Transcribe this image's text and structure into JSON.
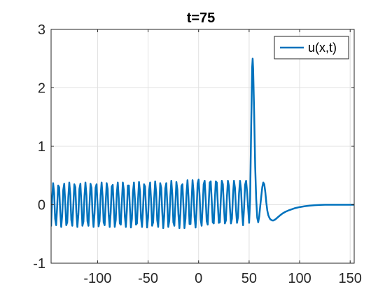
{
  "chart_data": {
    "type": "line",
    "title": "t=75",
    "xlabel": "",
    "ylabel": "",
    "xlim": [
      -146,
      154
    ],
    "ylim": [
      -1,
      3
    ],
    "xticks": [
      -100,
      -50,
      0,
      50,
      100,
      150
    ],
    "xtick_labels": [
      "-100",
      "-50",
      "0",
      "50",
      "100",
      "150"
    ],
    "yticks": [
      -1,
      0,
      1,
      2,
      3
    ],
    "ytick_labels": [
      "-1",
      "0",
      "1",
      "2",
      "3"
    ],
    "grid": true,
    "legend_position": "top-right",
    "series": [
      {
        "name": "u(x,t)",
        "color": "#0072bd",
        "points": [
          [
            -146,
            -0.36
          ],
          [
            -145,
            0.09
          ],
          [
            -144,
            0.37
          ],
          [
            -143,
            0.2
          ],
          [
            -142,
            -0.24
          ],
          [
            -141,
            -0.35
          ],
          [
            -140,
            -0.04
          ],
          [
            -139,
            0.33
          ],
          [
            -138,
            0.3
          ],
          [
            -137,
            -0.11
          ],
          [
            -136,
            -0.38
          ],
          [
            -135,
            -0.18
          ],
          [
            -134,
            0.25
          ],
          [
            -133,
            0.36
          ],
          [
            -132,
            0.03
          ],
          [
            -131,
            -0.35
          ],
          [
            -130,
            -0.3
          ],
          [
            -129,
            0.12
          ],
          [
            -128,
            0.38
          ],
          [
            -127,
            0.18
          ],
          [
            -126,
            -0.26
          ],
          [
            -125,
            -0.36
          ],
          [
            -124,
            -0.02
          ],
          [
            -123,
            0.35
          ],
          [
            -122,
            0.3
          ],
          [
            -121,
            -0.13
          ],
          [
            -120,
            -0.38
          ],
          [
            -119,
            -0.17
          ],
          [
            -118,
            0.27
          ],
          [
            -117,
            0.36
          ],
          [
            -116,
            0.02
          ],
          [
            -115,
            -0.36
          ],
          [
            -114,
            -0.29
          ],
          [
            -113,
            0.14
          ],
          [
            -112,
            0.38
          ],
          [
            -111,
            0.16
          ],
          [
            -110,
            -0.28
          ],
          [
            -109,
            -0.36
          ],
          [
            -108,
            -0.01
          ],
          [
            -107,
            0.36
          ],
          [
            -106,
            0.29
          ],
          [
            -105,
            -0.15
          ],
          [
            -104,
            -0.38
          ],
          [
            -103,
            -0.15
          ],
          [
            -102,
            0.29
          ],
          [
            -101,
            0.35
          ],
          [
            -100,
            0.0
          ],
          [
            -99,
            -0.37
          ],
          [
            -98,
            -0.28
          ],
          [
            -97,
            0.16
          ],
          [
            -96,
            0.38
          ],
          [
            -95,
            0.14
          ],
          [
            -94,
            -0.3
          ],
          [
            -93,
            -0.35
          ],
          [
            -92,
            0.01
          ],
          [
            -91,
            0.37
          ],
          [
            -90,
            0.27
          ],
          [
            -89,
            -0.17
          ],
          [
            -88,
            -0.38
          ],
          [
            -87,
            -0.13
          ],
          [
            -86,
            0.31
          ],
          [
            -85,
            0.34
          ],
          [
            -84,
            -0.03
          ],
          [
            -83,
            -0.38
          ],
          [
            -82,
            -0.26
          ],
          [
            -81,
            0.19
          ],
          [
            -80,
            0.38
          ],
          [
            -79,
            0.11
          ],
          [
            -78,
            -0.32
          ],
          [
            -77,
            -0.34
          ],
          [
            -76,
            0.04
          ],
          [
            -75,
            0.38
          ],
          [
            -74,
            0.25
          ],
          [
            -73,
            -0.2
          ],
          [
            -72,
            -0.38
          ],
          [
            -71,
            -0.1
          ],
          [
            -70,
            0.33
          ],
          [
            -69,
            0.33
          ],
          [
            -68,
            -0.05
          ],
          [
            -67,
            -0.39
          ],
          [
            -66,
            -0.24
          ],
          [
            -65,
            0.21
          ],
          [
            -64,
            0.38
          ],
          [
            -63,
            0.09
          ],
          [
            -62,
            -0.34
          ],
          [
            -61,
            -0.32
          ],
          [
            -60,
            0.07
          ],
          [
            -59,
            0.39
          ],
          [
            -58,
            0.23
          ],
          [
            -57,
            -0.23
          ],
          [
            -56,
            -0.38
          ],
          [
            -55,
            -0.07
          ],
          [
            -54,
            0.35
          ],
          [
            -53,
            0.31
          ],
          [
            -52,
            -0.08
          ],
          [
            -51,
            -0.39
          ],
          [
            -50,
            -0.22
          ],
          [
            -49,
            0.24
          ],
          [
            -48,
            0.38
          ],
          [
            -47,
            0.06
          ],
          [
            -46,
            -0.36
          ],
          [
            -45,
            -0.3
          ],
          [
            -44,
            0.1
          ],
          [
            -43,
            0.4
          ],
          [
            -42,
            0.21
          ],
          [
            -41,
            -0.26
          ],
          [
            -40,
            -0.38
          ],
          [
            -39,
            -0.04
          ],
          [
            -38,
            0.37
          ],
          [
            -37,
            0.29
          ],
          [
            -36,
            -0.12
          ],
          [
            -35,
            -0.4
          ],
          [
            -34,
            -0.19
          ],
          [
            -33,
            0.28
          ],
          [
            -32,
            0.37
          ],
          [
            -31,
            0.02
          ],
          [
            -30,
            -0.38
          ],
          [
            -29,
            -0.27
          ],
          [
            -28,
            0.14
          ],
          [
            -27,
            0.41
          ],
          [
            -26,
            0.17
          ],
          [
            -25,
            -0.3
          ],
          [
            -24,
            -0.36
          ],
          [
            -23,
            0.0
          ],
          [
            -22,
            0.39
          ],
          [
            -21,
            0.26
          ],
          [
            -20,
            -0.16
          ],
          [
            -19,
            -0.4
          ],
          [
            -18,
            -0.15
          ],
          [
            -17,
            0.32
          ],
          [
            -16,
            0.35
          ],
          [
            -15,
            -0.02
          ],
          [
            -14,
            -0.4
          ],
          [
            -13,
            -0.24
          ],
          [
            -12,
            0.19
          ],
          [
            -11,
            0.42
          ],
          [
            -10,
            0.13
          ],
          [
            -9,
            -0.33
          ],
          [
            -8,
            -0.33
          ],
          [
            -7,
            0.05
          ],
          [
            -6,
            0.42
          ],
          [
            -5,
            0.22
          ],
          [
            -4,
            -0.21
          ],
          [
            -3,
            -0.39
          ],
          [
            -2,
            -0.1
          ],
          [
            -1,
            0.36
          ],
          [
            0,
            0.43
          ],
          [
            1,
            0.15
          ],
          [
            2,
            -0.25
          ],
          [
            3,
            -0.36
          ],
          [
            4,
            -0.03
          ],
          [
            5,
            0.35
          ],
          [
            6,
            0.41
          ],
          [
            7,
            0.1
          ],
          [
            8,
            -0.28
          ],
          [
            9,
            -0.34
          ],
          [
            10,
            0.02
          ],
          [
            11,
            0.38
          ],
          [
            12,
            0.4
          ],
          [
            13,
            0.06
          ],
          [
            14,
            -0.3
          ],
          [
            15,
            -0.32
          ],
          [
            16,
            0.06
          ],
          [
            17,
            0.4
          ],
          [
            18,
            0.38
          ],
          [
            19,
            0.02
          ],
          [
            20,
            -0.31
          ],
          [
            21,
            -0.3
          ],
          [
            22,
            0.1
          ],
          [
            23,
            0.41
          ],
          [
            24,
            0.35
          ],
          [
            25,
            -0.02
          ],
          [
            26,
            -0.32
          ],
          [
            27,
            -0.27
          ],
          [
            28,
            0.13
          ],
          [
            29,
            0.41
          ],
          [
            30,
            0.32
          ],
          [
            31,
            -0.05
          ],
          [
            32,
            -0.32
          ],
          [
            33,
            -0.24
          ],
          [
            34,
            0.16
          ],
          [
            35,
            0.41
          ],
          [
            36,
            0.29
          ],
          [
            37,
            -0.08
          ],
          [
            38,
            -0.31
          ],
          [
            39,
            -0.21
          ],
          [
            40,
            0.19
          ],
          [
            41,
            0.41
          ],
          [
            42,
            0.26
          ],
          [
            43,
            -0.12
          ],
          [
            44,
            -0.35
          ],
          [
            45,
            -0.05
          ],
          [
            46,
            0.34
          ],
          [
            47,
            0.41
          ],
          [
            48,
            0.22
          ],
          [
            49,
            -0.05
          ],
          [
            50,
            -0.31
          ],
          [
            51,
            0.1
          ],
          [
            52,
            1.3
          ],
          [
            53,
            2.35
          ],
          [
            53.5,
            2.5
          ],
          [
            54,
            2.32
          ],
          [
            55,
            1.55
          ],
          [
            56,
            0.65
          ],
          [
            57,
            0.1
          ],
          [
            58,
            -0.22
          ],
          [
            59,
            -0.3
          ],
          [
            60,
            -0.2
          ],
          [
            61,
            -0.02
          ],
          [
            62,
            0.14
          ],
          [
            63,
            0.3
          ],
          [
            64,
            0.38
          ],
          [
            65,
            0.35
          ],
          [
            66,
            0.22
          ],
          [
            67,
            0.04
          ],
          [
            68,
            -0.1
          ],
          [
            69,
            -0.18
          ],
          [
            70,
            -0.22
          ],
          [
            71,
            -0.25
          ],
          [
            72,
            -0.26
          ],
          [
            73,
            -0.27
          ],
          [
            74,
            -0.27
          ],
          [
            75,
            -0.26
          ],
          [
            76,
            -0.25
          ],
          [
            78,
            -0.22
          ],
          [
            80,
            -0.19
          ],
          [
            83,
            -0.15
          ],
          [
            86,
            -0.12
          ],
          [
            90,
            -0.09
          ],
          [
            95,
            -0.06
          ],
          [
            100,
            -0.04
          ],
          [
            105,
            -0.025
          ],
          [
            110,
            -0.015
          ],
          [
            115,
            -0.008
          ],
          [
            120,
            -0.003
          ],
          [
            125,
            0
          ],
          [
            130,
            0
          ],
          [
            140,
            0
          ],
          [
            154,
            0
          ]
        ]
      }
    ]
  }
}
